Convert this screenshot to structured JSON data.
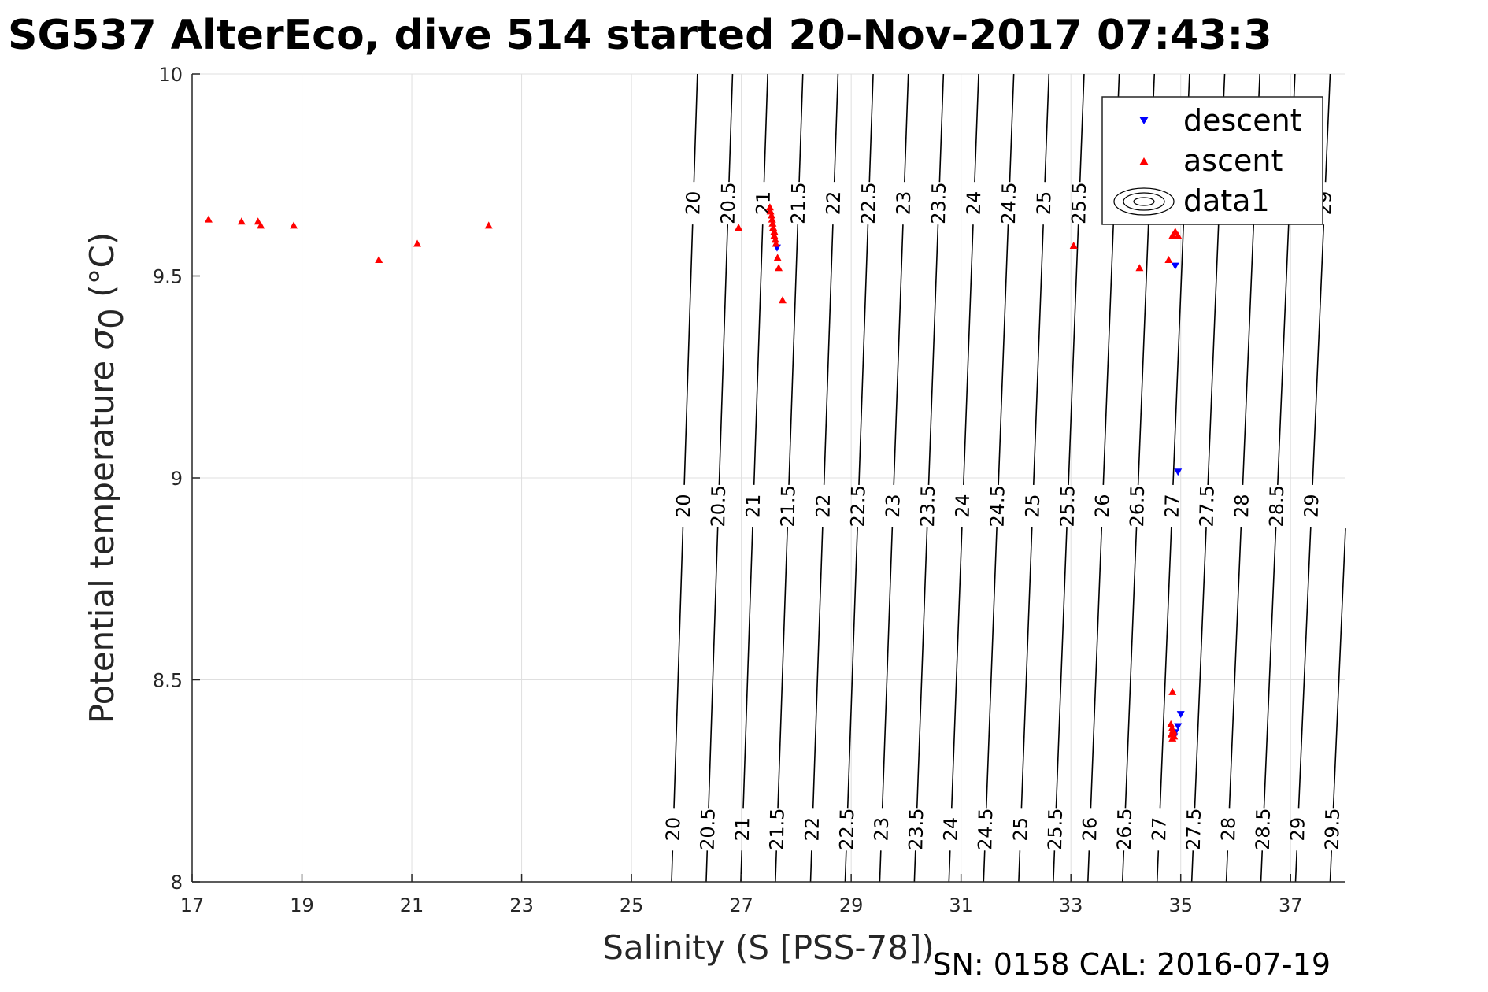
{
  "chart_data": {
    "type": "scatter",
    "title": "SG537 AlterEco, dive 514 started 20-Nov-2017 07:43:3",
    "xlabel": "Salinity (S [PSS-78])",
    "ylabel_main": "Potential temperature ",
    "ylabel_sigma": "σ",
    "ylabel_sub": "0",
    "ylabel_unit": " (°C)",
    "footer": "SN: 0158  CAL: 2016-07-19",
    "xlim": [
      17,
      38
    ],
    "ylim": [
      8,
      10
    ],
    "xticks": [
      "17",
      "19",
      "21",
      "23",
      "25",
      "27",
      "29",
      "31",
      "33",
      "35",
      "37"
    ],
    "yticks": [
      "8",
      "8.5",
      "9",
      "9.5",
      "10"
    ],
    "grid": true,
    "legend": {
      "placement": "top-right",
      "entries": [
        "descent",
        "ascent",
        "data1"
      ]
    },
    "series": [
      {
        "name": "descent",
        "marker": "triangle-down",
        "color": "#0000ff",
        "points": [
          [
            27.65,
            9.57
          ],
          [
            34.9,
            9.525
          ],
          [
            34.95,
            9.015
          ],
          [
            35.0,
            8.415
          ],
          [
            34.95,
            8.385
          ],
          [
            34.9,
            8.37
          ],
          [
            34.88,
            8.36
          ]
        ]
      },
      {
        "name": "ascent",
        "marker": "triangle-up",
        "color": "#ff0000",
        "points": [
          [
            17.3,
            9.64
          ],
          [
            17.9,
            9.635
          ],
          [
            18.2,
            9.635
          ],
          [
            18.25,
            9.625
          ],
          [
            18.85,
            9.625
          ],
          [
            20.4,
            9.54
          ],
          [
            21.1,
            9.58
          ],
          [
            22.4,
            9.625
          ],
          [
            26.95,
            9.62
          ],
          [
            27.52,
            9.67
          ],
          [
            27.53,
            9.66
          ],
          [
            27.55,
            9.65
          ],
          [
            27.56,
            9.64
          ],
          [
            27.57,
            9.63
          ],
          [
            27.58,
            9.62
          ],
          [
            27.6,
            9.61
          ],
          [
            27.6,
            9.6
          ],
          [
            27.62,
            9.59
          ],
          [
            27.63,
            9.58
          ],
          [
            27.66,
            9.545
          ],
          [
            27.68,
            9.52
          ],
          [
            27.75,
            9.44
          ],
          [
            33.05,
            9.575
          ],
          [
            34.25,
            9.52
          ],
          [
            34.78,
            9.54
          ],
          [
            34.85,
            9.6
          ],
          [
            34.9,
            9.61
          ],
          [
            34.95,
            9.6
          ],
          [
            34.85,
            8.47
          ],
          [
            34.82,
            8.39
          ],
          [
            34.84,
            8.38
          ],
          [
            34.86,
            8.375
          ],
          [
            34.87,
            8.37
          ],
          [
            34.83,
            8.365
          ],
          [
            34.88,
            8.36
          ],
          [
            34.85,
            8.355
          ]
        ]
      }
    ],
    "contours": {
      "series_name": "data1",
      "levels": [
        "20",
        "20.5",
        "21",
        "21.5",
        "22",
        "22.5",
        "23",
        "23.5",
        "24",
        "24.5",
        "25",
        "25.5",
        "26",
        "26.5",
        "27",
        "27.5",
        "28",
        "28.5",
        "29",
        "29.5"
      ],
      "salinity_at_t8": [
        25.73,
        26.36,
        26.99,
        27.62,
        28.26,
        28.89,
        29.52,
        30.15,
        30.78,
        31.41,
        32.05,
        32.68,
        33.31,
        33.94,
        34.57,
        35.2,
        35.83,
        36.46,
        37.09,
        37.72
      ],
      "salinity_at_t10": [
        26.2,
        26.84,
        27.48,
        28.12,
        28.76,
        29.4,
        30.04,
        30.68,
        31.32,
        31.96,
        32.6,
        33.24,
        33.88,
        34.52,
        35.16,
        35.8,
        36.44,
        37.08,
        37.72,
        38.36
      ],
      "label_temps": [
        9.68,
        8.93,
        8.13
      ],
      "color": "#000000"
    }
  }
}
